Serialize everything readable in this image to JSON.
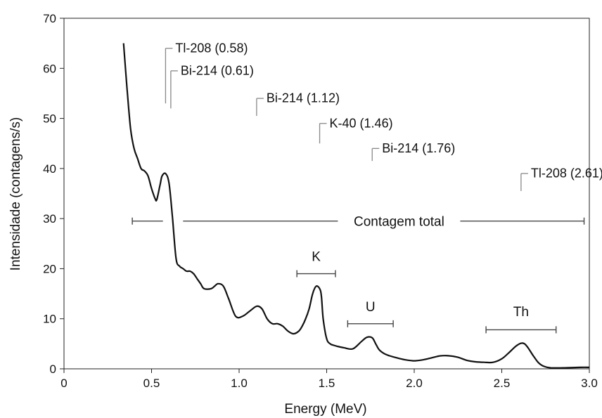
{
  "chart_data": {
    "type": "line",
    "xlabel": "Energy (MeV)",
    "ylabel": "Intensidade (contagens/s)",
    "xlim": [
      0,
      3.0
    ],
    "ylim": [
      0,
      70
    ],
    "xticks": [
      0,
      0.5,
      1.0,
      1.5,
      2.0,
      2.5,
      3.0
    ],
    "xtick_labels": [
      "0",
      "0.5",
      "1.0",
      "1.5",
      "2.0",
      "2.5",
      "3.0"
    ],
    "yticks": [
      0,
      10,
      20,
      30,
      40,
      50,
      60,
      70
    ],
    "ytick_labels": [
      "0",
      "10",
      "20",
      "30",
      "40",
      "50",
      "60",
      "70"
    ],
    "grid": false,
    "series": [
      {
        "x": [
          0.34,
          0.36,
          0.38,
          0.4,
          0.42,
          0.44,
          0.46,
          0.48,
          0.5,
          0.52,
          0.53,
          0.55,
          0.56,
          0.58,
          0.6,
          0.62,
          0.64,
          0.66,
          0.68,
          0.7,
          0.72,
          0.74,
          0.76,
          0.78,
          0.8,
          0.84,
          0.86,
          0.88,
          0.91,
          0.94,
          0.98,
          1.02,
          1.06,
          1.1,
          1.13,
          1.16,
          1.19,
          1.22,
          1.25,
          1.28,
          1.31,
          1.34,
          1.36,
          1.38,
          1.4,
          1.42,
          1.44,
          1.46,
          1.47,
          1.48,
          1.5,
          1.52,
          1.54,
          1.56,
          1.6,
          1.65,
          1.7,
          1.73,
          1.76,
          1.78,
          1.8,
          1.83,
          1.86,
          1.9,
          1.95,
          2.0,
          2.05,
          2.1,
          2.15,
          2.2,
          2.25,
          2.3,
          2.35,
          2.4,
          2.45,
          2.5,
          2.54,
          2.58,
          2.61,
          2.63,
          2.65,
          2.68,
          2.71,
          2.74,
          2.78,
          2.85,
          2.95,
          3.0
        ],
        "y": [
          65,
          56,
          48,
          44,
          42,
          40,
          39.5,
          38.5,
          36,
          34,
          33.8,
          37,
          38.5,
          39,
          37,
          30,
          22,
          20.5,
          20,
          19.5,
          19.5,
          19,
          18,
          17,
          16,
          16,
          16.5,
          17,
          16.5,
          14,
          10.5,
          10.5,
          11.5,
          12.5,
          12,
          10,
          9,
          9,
          8.5,
          7.5,
          7,
          7.5,
          8.5,
          10,
          12,
          15,
          16.5,
          16,
          14.5,
          10,
          6,
          5,
          4.7,
          4.5,
          4.2,
          4,
          5.5,
          6.3,
          6.2,
          5,
          3.8,
          3,
          2.6,
          2.2,
          1.8,
          1.6,
          1.8,
          2.2,
          2.6,
          2.6,
          2.3,
          1.7,
          1.4,
          1.3,
          1.3,
          2.0,
          3.2,
          4.5,
          5.1,
          5.0,
          4.2,
          2.6,
          1.2,
          0.5,
          0.2,
          0.2,
          0.3,
          0.3
        ]
      }
    ],
    "peak_labels": [
      {
        "text": "Tl-208 (0.58)",
        "energy": 0.58,
        "line_bottom": 53,
        "line_top": 64,
        "label_y": 63.5
      },
      {
        "text": "Bi-214 (0.61)",
        "energy": 0.61,
        "line_bottom": 52,
        "line_top": 59.5,
        "label_y": 59
      },
      {
        "text": "Bi-214 (1.12)",
        "energy": 1.1,
        "line_bottom": 50.5,
        "line_top": 54,
        "label_y": 53.5
      },
      {
        "text": "K-40 (1.46)",
        "energy": 1.46,
        "line_bottom": 45,
        "line_top": 49,
        "label_y": 48.5
      },
      {
        "text": "Bi-214 (1.76)",
        "energy": 1.76,
        "line_bottom": 41.5,
        "line_top": 44,
        "label_y": 43.5
      },
      {
        "text": "Tl-208 (2.61)",
        "energy": 2.61,
        "line_bottom": 35.5,
        "line_top": 39,
        "label_y": 38.5
      }
    ],
    "windows": [
      {
        "label": "Contagem total",
        "x_start": 0.39,
        "x_end": 2.97,
        "y": 29.5
      },
      {
        "label": "K",
        "x_start": 1.33,
        "x_end": 1.55,
        "y": 19,
        "label_y": 21.5
      },
      {
        "label": "U",
        "x_start": 1.62,
        "x_end": 1.88,
        "y": 9,
        "label_y": 11.5
      },
      {
        "label": "Th",
        "x_start": 2.41,
        "x_end": 2.81,
        "y": 7.8,
        "label_y": 10.5
      }
    ]
  }
}
